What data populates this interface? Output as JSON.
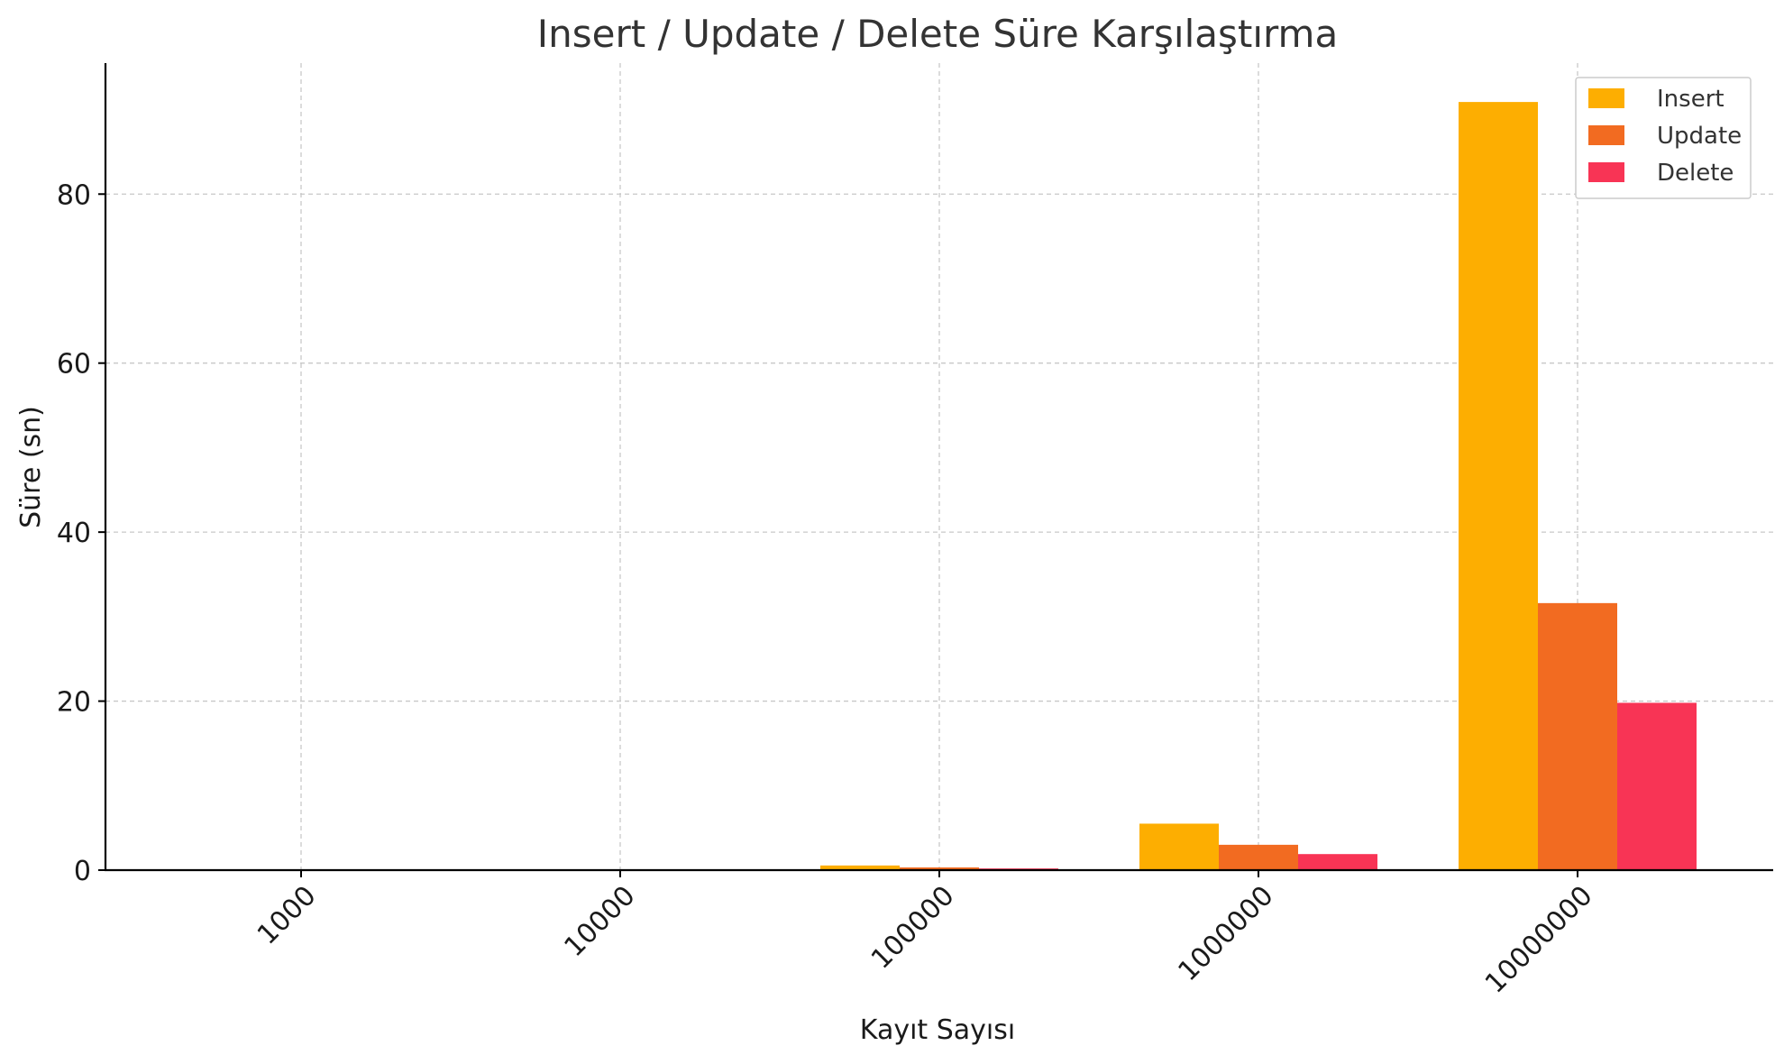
{
  "chart_data": {
    "type": "bar",
    "title": "Insert / Update / Delete Süre Karşılaştırma",
    "xlabel": "Kayıt Sayısı",
    "ylabel": "Süre (sn)",
    "categories": [
      "1000",
      "10000",
      "100000",
      "1000000",
      "10000000"
    ],
    "series": [
      {
        "name": "Insert",
        "color": "#FDAE01",
        "values": [
          0.005,
          0.05,
          0.55,
          5.5,
          90.9
        ]
      },
      {
        "name": "Update",
        "color": "#F26B21",
        "values": [
          0.003,
          0.03,
          0.32,
          3.0,
          31.6
        ]
      },
      {
        "name": "Delete",
        "color": "#F83455",
        "values": [
          0.002,
          0.02,
          0.2,
          1.9,
          19.8
        ]
      }
    ],
    "ylim": [
      0,
      95.5
    ],
    "yticks": [
      0,
      20,
      40,
      60,
      80
    ],
    "grid": true,
    "legend_position": "top-right"
  }
}
